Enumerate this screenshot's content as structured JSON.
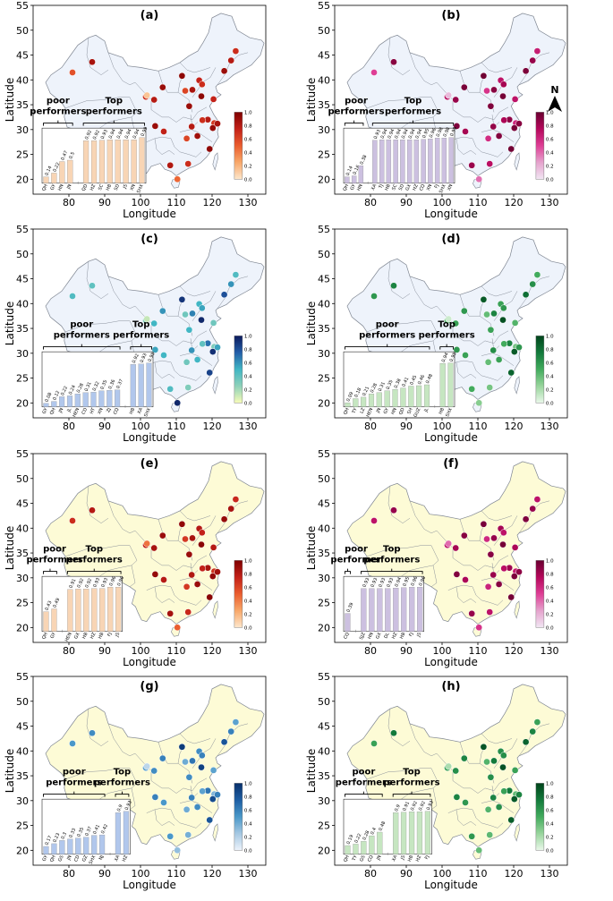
{
  "axes": {
    "x_label": "Longitude",
    "y_label": "Latitude",
    "xlim": [
      70,
      135
    ],
    "ylim": [
      17,
      55
    ],
    "x_ticks": [
      80,
      90,
      100,
      110,
      120,
      130
    ],
    "y_ticks": [
      20,
      25,
      30,
      35,
      40,
      45,
      50,
      55
    ]
  },
  "colorbar_ticks": [
    "0.0",
    "0.2",
    "0.4",
    "0.6",
    "0.8",
    "1.0"
  ],
  "north_label": "N",
  "colors": {
    "land_blue": "#eef3fb",
    "land_yellow": "#fdfbd6",
    "border": "#7f8692",
    "reds": [
      "#fde7cc",
      "#f8a86a",
      "#ea5d2e",
      "#c32118",
      "#7f0000"
    ],
    "purples": [
      "#f1e6f3",
      "#e5a3cd",
      "#de3e95",
      "#b5075b",
      "#6a0030"
    ],
    "ygbs": [
      "#f7fcb8",
      "#8fd1b9",
      "#41b6c4",
      "#225ea8",
      "#0c1a5c"
    ],
    "greens": [
      "#eaf8ea",
      "#98d59c",
      "#42ab5d",
      "#137a3b",
      "#00441b"
    ],
    "blues": [
      "#edf3fb",
      "#a5c8e2",
      "#4a98c9",
      "#1d5ea3",
      "#08306b"
    ],
    "bar_orange": "#f8d5b5",
    "bar_purple": "#ccc0e0",
    "bar_blue": "#b1c7ec",
    "bar_green": "#c6e6c1"
  },
  "chart_data": [
    {
      "type": "bar",
      "title": "(a)",
      "poor_label": "poor performers",
      "top_label": "Top performers",
      "categories": [
        "QH",
        "GY",
        "HN",
        "JN",
        "QD",
        "HZ",
        "SC",
        "HB",
        "SD",
        "JS",
        "XN",
        "SHX"
      ],
      "values": [
        0.14,
        0.22,
        0.47,
        0.5,
        0.92,
        0.92,
        0.93,
        0.94,
        0.94,
        0.94,
        0.94,
        0.99
      ],
      "value_labels": [
        "0.14",
        "0.22",
        "0.47",
        "0.5",
        "0.92",
        "0.92",
        "0.93",
        "0.94",
        "0.94",
        "0.94",
        "0.94",
        "0.99"
      ],
      "poor_count": 4,
      "ylim": [
        0,
        1
      ]
    },
    {
      "type": "bar",
      "title": "(b)",
      "poor_label": "poor performers",
      "top_label": "Top performers",
      "categories": [
        "QH",
        "GY",
        "HN",
        "XA",
        "TJ",
        "HB",
        "SC",
        "SD",
        "GX",
        "HZ",
        "CQ",
        "XN",
        "FJ",
        "SHX",
        "XN"
      ],
      "values": [
        0.14,
        0.16,
        0.38,
        0.93,
        0.94,
        0.94,
        0.94,
        0.94,
        0.94,
        0.94,
        0.95,
        0.96,
        0.98,
        0.98,
        0.99
      ],
      "value_labels": [
        "0.14",
        "0.16",
        "0.38",
        "0.93",
        "0.94",
        "0.94",
        "0.94",
        "0.94",
        "0.94",
        "0.94",
        "0.95",
        "0.96",
        "0.98",
        "0.98",
        "0.99"
      ],
      "poor_count": 3,
      "ylim": [
        0,
        1
      ]
    },
    {
      "type": "bar",
      "title": "(c)",
      "poor_label": "poor performers",
      "top_label": "Top performers",
      "categories": [
        "GY",
        "QH",
        "JN",
        "JL",
        "HEN",
        "CD",
        "HT",
        "XN",
        "ZJ",
        "CQ",
        "HB",
        "XA",
        "SHX"
      ],
      "values": [
        0.08,
        0.12,
        0.22,
        0.24,
        0.28,
        0.31,
        0.32,
        0.35,
        0.36,
        0.37,
        0.92,
        0.93,
        0.95
      ],
      "value_labels": [
        "0.08",
        "0.12",
        "0.22",
        "0.24",
        "0.28",
        "0.31",
        "0.32",
        "0.35",
        "0.36",
        "0.37",
        "0.92",
        "0.93",
        "0.95"
      ],
      "poor_count": 10,
      "ylim": [
        0,
        1
      ]
    },
    {
      "type": "bar",
      "title": "(d)",
      "poor_label": "poor performers",
      "top_label": "Top performers",
      "categories": [
        "QH",
        "TY",
        "LZ",
        "HEN",
        "JN",
        "GY",
        "HN",
        "QD",
        "SH",
        "GUZ",
        "JL",
        "HB",
        "SHX"
      ],
      "values": [
        0.09,
        0.18,
        0.21,
        0.28,
        0.31,
        0.35,
        0.38,
        0.41,
        0.45,
        0.46,
        0.48,
        0.94,
        0.95
      ],
      "value_labels": [
        "0.09",
        "0.18",
        "0.21",
        "0.28",
        "0.31",
        "0.35",
        "0.38",
        "0.41",
        "0.45",
        "0.46",
        "0.48",
        "0.94",
        "0.95"
      ],
      "poor_count": 11,
      "ylim": [
        0,
        1
      ]
    },
    {
      "type": "bar",
      "title": "(e)",
      "poor_label": "poor performers",
      "top_label": "Top performers",
      "categories": [
        "QH",
        "GY",
        "HEN",
        "GX",
        "HB",
        "HZ",
        "HB",
        "FJ",
        "JS"
      ],
      "values": [
        0.43,
        0.49,
        0.91,
        0.92,
        0.92,
        0.93,
        0.93,
        0.96,
        0.96
      ],
      "value_labels": [
        "0.43",
        "0.49",
        "0.91",
        "0.92",
        "0.92",
        "0.93",
        "0.93",
        "0.96",
        "0.96"
      ],
      "poor_count": 2,
      "ylim": [
        0,
        1
      ]
    },
    {
      "type": "bar",
      "title": "(f)",
      "poor_label": "poor performer",
      "top_label": "Top performers",
      "categories": [
        "CQ",
        "SJZ",
        "HN",
        "GX",
        "DL",
        "HZ",
        "HB",
        "FJ",
        "JS"
      ],
      "values": [
        0.39,
        0.93,
        0.93,
        0.93,
        0.93,
        0.94,
        0.95,
        0.96,
        0.96
      ],
      "value_labels": [
        "0.39",
        "0.93",
        "0.93",
        "0.93",
        "0.93",
        "0.94",
        "0.95",
        "0.96",
        "0.96"
      ],
      "poor_count": 1,
      "ylim": [
        0,
        1
      ]
    },
    {
      "type": "bar",
      "title": "(g)",
      "poor_label": "poor performers",
      "top_label": "Top performers",
      "categories": [
        "GY",
        "QH",
        "GS",
        "JN",
        "CD",
        "GZ",
        "SHX",
        "NJ",
        "XA",
        "HZ"
      ],
      "values": [
        0.17,
        0.23,
        0.3,
        0.33,
        0.35,
        0.37,
        0.41,
        0.42,
        0.9,
        0.93
      ],
      "value_labels": [
        "0.17",
        "0.23",
        "0.3",
        "0.33",
        "0.35",
        "0.37",
        "0.41",
        "0.42",
        "0.9",
        "0.93"
      ],
      "poor_count": 8,
      "ylim": [
        0,
        1
      ]
    },
    {
      "type": "bar",
      "title": "(h)",
      "poor_label": "poor performers",
      "top_label": "Top performers",
      "categories": [
        "QH",
        "TY",
        "GS",
        "CQ",
        "JN",
        "XA",
        "JS",
        "HB",
        "HZ",
        "FJ"
      ],
      "values": [
        0.19,
        0.22,
        0.28,
        0.4,
        0.48,
        0.9,
        0.91,
        0.92,
        0.92,
        0.93
      ],
      "value_labels": [
        "0.19",
        "0.22",
        "0.28",
        "0.4",
        "0.48",
        "0.9",
        "0.91",
        "0.92",
        "0.92",
        "0.93"
      ],
      "poor_count": 5,
      "ylim": [
        0,
        1
      ]
    }
  ],
  "city_values": [
    [
      0.55,
      0.85,
      0.7,
      0.8,
      0.9,
      0.95,
      0.6,
      0.75,
      0.7,
      0.85,
      0.9,
      0.8,
      0.7,
      0.95,
      0.75,
      0.9,
      0.8,
      0.65,
      0.85,
      0.92,
      0.7,
      0.8,
      0.6,
      0.88,
      0.94,
      0.7,
      0.82,
      0.76,
      0.9,
      0.14,
      0.47
    ],
    [
      0.5,
      0.9,
      0.75,
      0.85,
      0.95,
      0.98,
      0.55,
      0.7,
      0.8,
      0.9,
      0.94,
      0.85,
      0.65,
      0.96,
      0.7,
      0.93,
      0.88,
      0.6,
      0.9,
      0.95,
      0.78,
      0.86,
      0.58,
      0.92,
      0.97,
      0.72,
      0.84,
      0.8,
      0.93,
      0.16,
      0.38
    ],
    [
      0.45,
      0.4,
      0.3,
      0.5,
      0.6,
      0.9,
      0.35,
      0.5,
      0.55,
      0.65,
      0.8,
      0.6,
      0.45,
      0.95,
      0.35,
      0.5,
      0.7,
      0.3,
      0.55,
      0.92,
      0.4,
      0.6,
      0.35,
      0.5,
      0.85,
      0.3,
      0.45,
      0.5,
      0.55,
      0.12,
      0.95
    ],
    [
      0.6,
      0.7,
      0.45,
      0.55,
      0.6,
      0.9,
      0.4,
      0.55,
      0.6,
      0.7,
      0.8,
      0.65,
      0.5,
      0.94,
      0.45,
      0.55,
      0.7,
      0.35,
      0.6,
      0.9,
      0.5,
      0.65,
      0.4,
      0.55,
      0.85,
      0.35,
      0.5,
      0.55,
      0.6,
      0.09,
      0.3
    ],
    [
      0.7,
      0.8,
      0.75,
      0.85,
      0.9,
      0.93,
      0.65,
      0.8,
      0.75,
      0.85,
      0.92,
      0.85,
      0.72,
      0.96,
      0.8,
      0.9,
      0.85,
      0.68,
      0.88,
      0.93,
      0.75,
      0.82,
      0.65,
      0.9,
      0.96,
      0.72,
      0.86,
      0.8,
      0.92,
      0.43,
      0.5
    ],
    [
      0.7,
      0.85,
      0.7,
      0.8,
      0.9,
      0.95,
      0.6,
      0.8,
      0.7,
      0.85,
      0.93,
      0.85,
      0.7,
      0.96,
      0.78,
      0.9,
      0.82,
      0.66,
      0.88,
      0.94,
      0.72,
      0.84,
      0.62,
      0.9,
      0.96,
      0.7,
      0.85,
      0.78,
      0.92,
      0.39,
      0.55
    ],
    [
      0.5,
      0.55,
      0.45,
      0.55,
      0.6,
      0.93,
      0.4,
      0.55,
      0.6,
      0.65,
      0.8,
      0.6,
      0.45,
      0.9,
      0.45,
      0.55,
      0.65,
      0.35,
      0.6,
      0.85,
      0.45,
      0.6,
      0.4,
      0.55,
      0.8,
      0.38,
      0.5,
      0.5,
      0.6,
      0.17,
      0.3
    ],
    [
      0.55,
      0.75,
      0.55,
      0.65,
      0.7,
      0.92,
      0.45,
      0.65,
      0.65,
      0.75,
      0.85,
      0.7,
      0.55,
      0.93,
      0.55,
      0.65,
      0.75,
      0.4,
      0.7,
      0.9,
      0.55,
      0.7,
      0.45,
      0.65,
      0.88,
      0.42,
      0.6,
      0.6,
      0.7,
      0.19,
      0.4
    ]
  ]
}
